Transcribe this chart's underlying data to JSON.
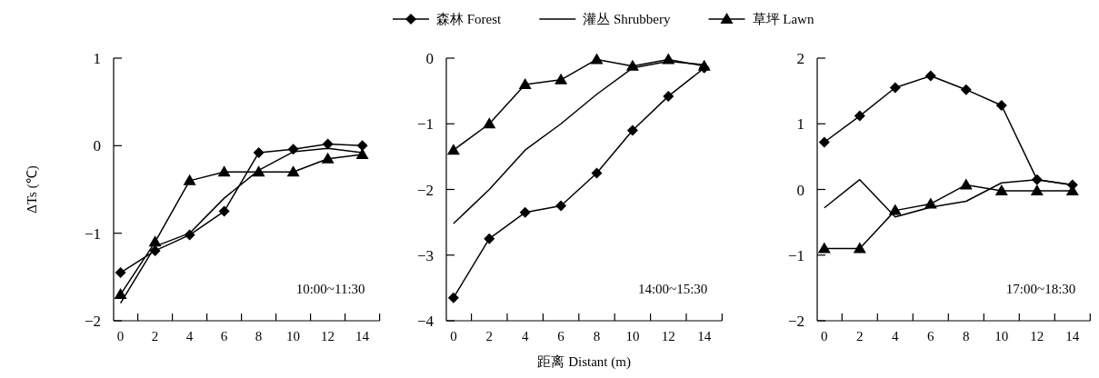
{
  "chart_data": [
    {
      "type": "line",
      "ylabel": "ΔTs (℃)",
      "categories": [
        "0",
        "2",
        "4",
        "6",
        "8",
        "10",
        "12",
        "14"
      ],
      "ylim": [
        -2,
        1
      ],
      "yticks": [
        -2,
        -1,
        0,
        1
      ],
      "legend": "top",
      "grid": false,
      "annotations": [
        "10:00~11:30"
      ],
      "series": [
        {
          "name": "森林 Forest",
          "color": "#000000",
          "marker": "diamond",
          "values": [
            -1.45,
            -1.2,
            -1.02,
            -0.75,
            -0.08,
            -0.04,
            0.02,
            0.0
          ]
        },
        {
          "name": "灌丛 Shrubbery",
          "color": "#000000",
          "marker": "none",
          "values": [
            -1.8,
            -1.15,
            -1.0,
            -0.6,
            -0.28,
            -0.07,
            -0.03,
            -0.08
          ]
        },
        {
          "name": "草坪 Lawn",
          "color": "#000000",
          "marker": "triangle",
          "values": [
            -1.7,
            -1.1,
            -0.4,
            -0.3,
            -0.3,
            -0.3,
            -0.15,
            -0.1
          ]
        }
      ]
    },
    {
      "type": "line",
      "xlabel": "距离 Distant (m)",
      "categories": [
        "0",
        "2",
        "4",
        "6",
        "8",
        "10",
        "12",
        "14"
      ],
      "ylim": [
        -4,
        0
      ],
      "yticks": [
        -4,
        -3,
        -2,
        -1,
        0
      ],
      "grid": false,
      "annotations": [
        "14:00~15:30"
      ],
      "series": [
        {
          "color": "#000000",
          "marker": "diamond",
          "values": [
            -3.65,
            -2.75,
            -2.35,
            -2.25,
            -1.75,
            -1.1,
            -0.58,
            -0.15
          ]
        },
        {
          "color": "#000000",
          "marker": "none",
          "values": [
            -2.52,
            -2.0,
            -1.4,
            -1.0,
            -0.55,
            -0.15,
            -0.05,
            -0.1
          ]
        },
        {
          "color": "#000000",
          "marker": "triangle",
          "values": [
            -1.4,
            -1.0,
            -0.4,
            -0.33,
            -0.02,
            -0.12,
            -0.02,
            -0.12
          ]
        }
      ]
    },
    {
      "type": "line",
      "categories": [
        "0",
        "2",
        "4",
        "6",
        "8",
        "10",
        "12",
        "14"
      ],
      "ylim": [
        -2,
        2
      ],
      "yticks": [
        -2,
        -1,
        0,
        1,
        2
      ],
      "grid": false,
      "annotations": [
        "17:00~18:30"
      ],
      "series": [
        {
          "color": "#000000",
          "marker": "diamond",
          "values": [
            0.72,
            1.12,
            1.55,
            1.73,
            1.52,
            1.28,
            0.15,
            0.07
          ]
        },
        {
          "color": "#000000",
          "marker": "none",
          "values": [
            -0.28,
            0.15,
            -0.42,
            -0.27,
            -0.18,
            0.1,
            0.15,
            0.07
          ]
        },
        {
          "color": "#000000",
          "marker": "triangle",
          "values": [
            -0.9,
            -0.9,
            -0.32,
            -0.22,
            0.07,
            -0.02,
            -0.02,
            -0.02
          ]
        }
      ]
    }
  ]
}
